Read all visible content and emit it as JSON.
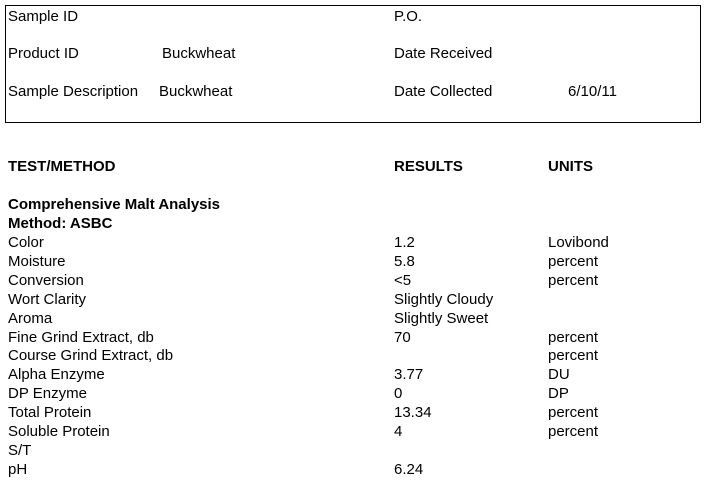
{
  "header": {
    "rows": [
      {
        "left": {
          "label": "Sample ID"
        },
        "right": {
          "label": "P.O."
        }
      },
      {
        "left": {
          "label": "Product ID",
          "value": "Buckwheat"
        },
        "right": {
          "label": "Date Received"
        }
      },
      {
        "left": {
          "label": "Sample Description",
          "value": "Buckwheat"
        },
        "right": {
          "label": "Date Collected",
          "value": "6/10/11"
        }
      }
    ]
  },
  "table": {
    "columns": [
      "TEST/METHOD",
      "RESULTS",
      "UNITS"
    ],
    "section": "Comprehensive Malt Analysis",
    "method": "Method: ASBC",
    "rows": [
      {
        "test": "Color",
        "result": "1.2",
        "unit": "Lovibond"
      },
      {
        "test": "Moisture",
        "result": "5.8",
        "unit": "percent"
      },
      {
        "test": "Conversion",
        "result": "<5",
        "unit": "percent"
      },
      {
        "test": "Wort Clarity",
        "result": "Slightly Cloudy"
      },
      {
        "test": "Aroma",
        "result": "Slightly Sweet"
      },
      {
        "test": "Fine Grind Extract, db",
        "result": "70",
        "unit": "percent"
      },
      {
        "test": "Course Grind Extract, db",
        "unit": "percent"
      },
      {
        "test": "Alpha Enzyme",
        "result": "3.77",
        "unit": "DU"
      },
      {
        "test": "DP Enzyme",
        "result": "0",
        "unit": "DP"
      },
      {
        "test": "Total Protein",
        "result": "13.34",
        "unit": "percent"
      },
      {
        "test": "Soluble Protein",
        "result": "4",
        "unit": "percent"
      },
      {
        "test": "S/T"
      },
      {
        "test": "pH",
        "result": "6.24"
      }
    ]
  }
}
